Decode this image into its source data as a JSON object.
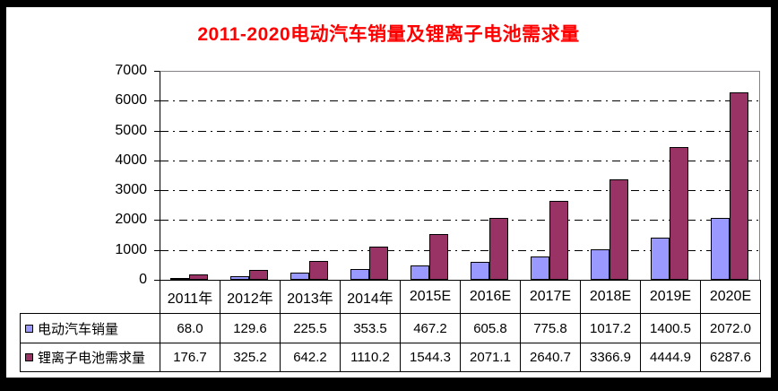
{
  "title": "2011-2020电动汽车销量及锂离子电池需求量",
  "colors": {
    "title": "#ff0000",
    "series1": "#9999ff",
    "series2": "#993366",
    "plot_border": "#848284",
    "gridline": "#000000",
    "frame": "#000000"
  },
  "chart_data": {
    "type": "bar",
    "title": "2011-2020电动汽车销量及锂离子电池需求量",
    "categories": [
      "2011年",
      "2012年",
      "2013年",
      "2014年",
      "2015E",
      "2016E",
      "2017E",
      "2018E",
      "2019E",
      "2020E"
    ],
    "series": [
      {
        "name": "电动汽车销量",
        "color": "#9999ff",
        "values": [
          68.0,
          129.6,
          225.5,
          353.5,
          467.2,
          605.8,
          775.8,
          1017.2,
          1400.5,
          2072.0
        ]
      },
      {
        "name": "锂离子电池需求量",
        "color": "#993366",
        "values": [
          176.7,
          325.2,
          642.2,
          1110.2,
          1544.3,
          2071.1,
          2640.7,
          3366.9,
          4444.9,
          6287.6
        ]
      }
    ],
    "ylim": [
      0,
      7000
    ],
    "ytick_interval": 1000,
    "yticks": [
      0,
      1000,
      2000,
      3000,
      4000,
      5000,
      6000,
      7000
    ],
    "grid": "horizontal-dash-dot",
    "legend_position": "data-table",
    "data_table_shown": true,
    "value_decimals": 1
  }
}
